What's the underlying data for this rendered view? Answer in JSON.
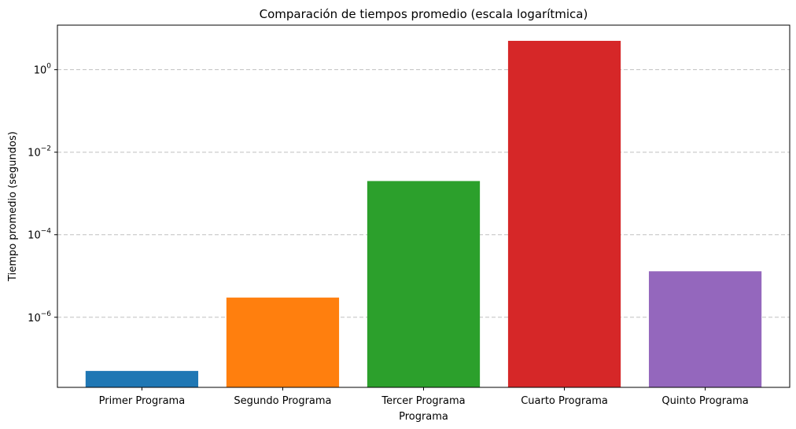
{
  "chart_data": {
    "type": "bar",
    "title": "Comparación de tiempos promedio (escala logarítmica)",
    "xlabel": "Programa",
    "ylabel": "Tiempo promedio (segundos)",
    "yscale": "log",
    "ylim": [
      2e-08,
      12
    ],
    "categories": [
      "Primer Programa",
      "Segundo Programa",
      "Tercer Programa",
      "Cuarto Programa",
      "Quinto Programa"
    ],
    "values": [
      5e-08,
      3e-06,
      0.002,
      5,
      1.3e-05
    ],
    "colors": [
      "#1f77b4",
      "#ff7f0e",
      "#2ca02c",
      "#d62728",
      "#9467bd"
    ],
    "yticks": [
      {
        "base": "10",
        "exp": "0",
        "value": 1
      },
      {
        "base": "10",
        "exp": "−2",
        "value": 0.01
      },
      {
        "base": "10",
        "exp": "−4",
        "value": 0.0001
      },
      {
        "base": "10",
        "exp": "−6",
        "value": 1e-06
      }
    ],
    "grid": "y-dashed",
    "legend": "none"
  }
}
